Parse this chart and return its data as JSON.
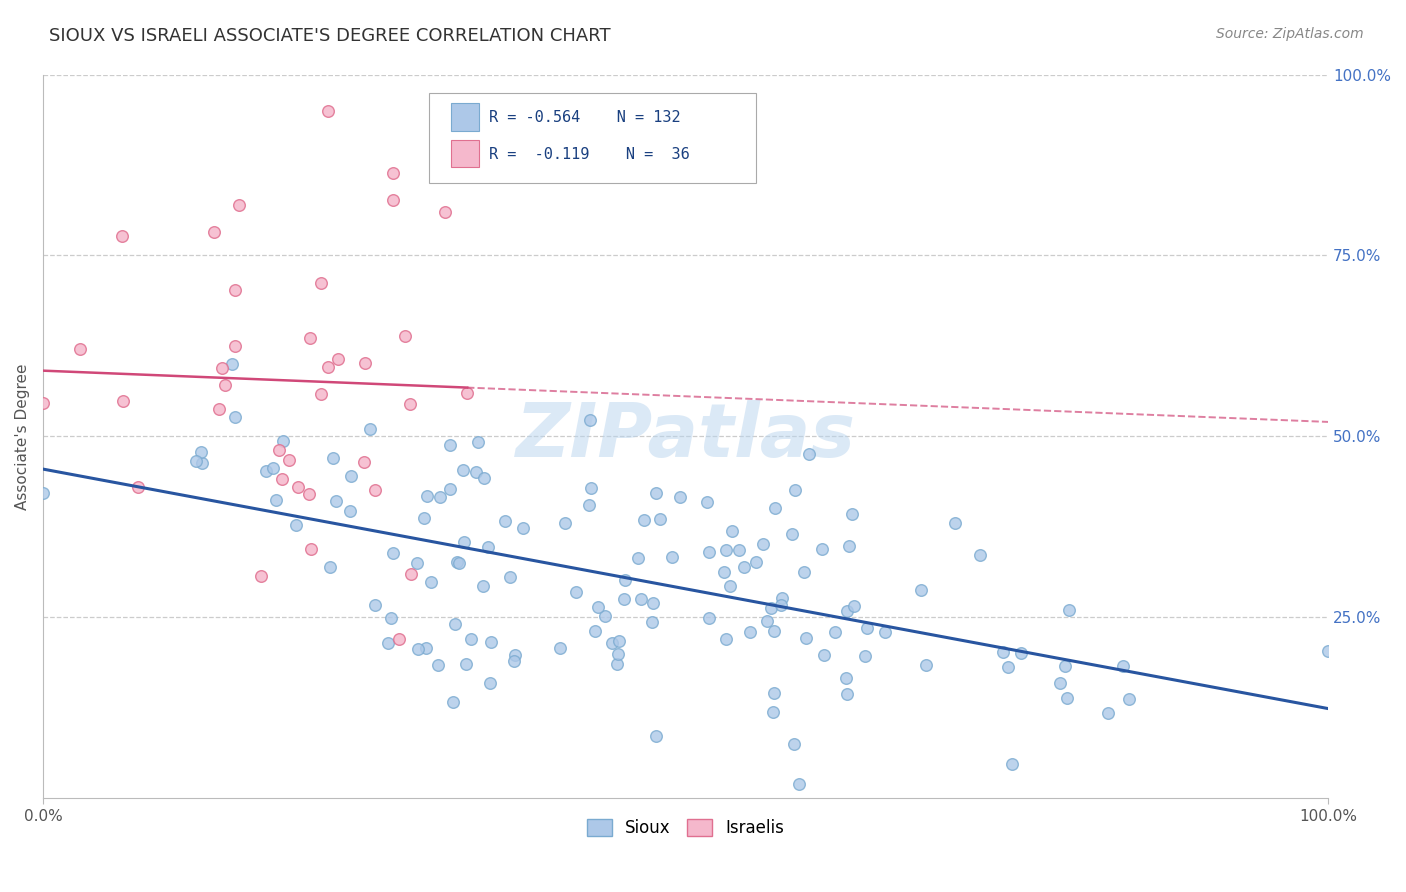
{
  "title": "SIOUX VS ISRAELI ASSOCIATE'S DEGREE CORRELATION CHART",
  "source": "Source: ZipAtlas.com",
  "ylabel": "Associate's Degree",
  "ylabel_right_labels": [
    "100.0%",
    "75.0%",
    "50.0%",
    "25.0%"
  ],
  "ylabel_right_values": [
    1.0,
    0.75,
    0.5,
    0.25
  ],
  "sioux_R": -0.564,
  "sioux_N": 132,
  "israeli_R": -0.119,
  "israeli_N": 36,
  "sioux_color": "#adc8e8",
  "sioux_edge_color": "#7aaad0",
  "sioux_line_color": "#2855a0",
  "israeli_color": "#f5b8cc",
  "israeli_edge_color": "#e07090",
  "israeli_line_color": "#d04878",
  "watermark": "ZIPatlas",
  "background_color": "#ffffff",
  "grid_color": "#cccccc",
  "xmin": 0.0,
  "xmax": 1.0,
  "ymin": 0.0,
  "ymax": 1.0
}
